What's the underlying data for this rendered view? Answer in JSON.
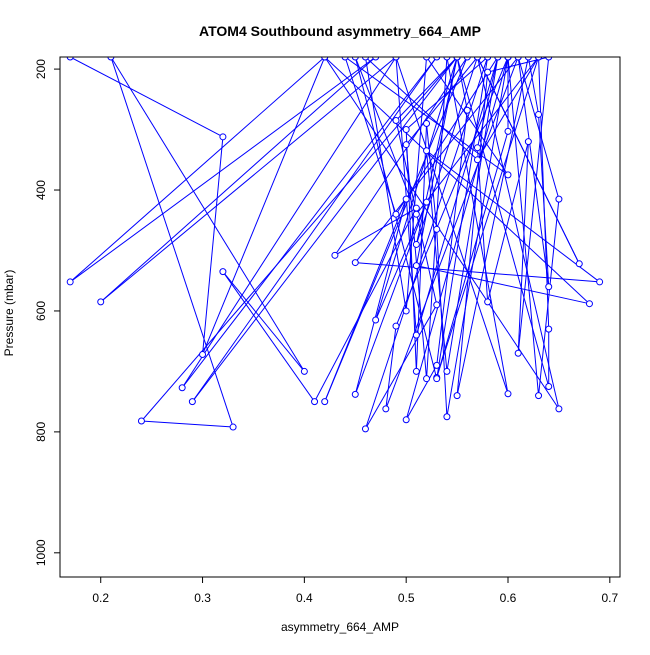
{
  "chart_data": {
    "type": "line",
    "title": "ATOM4 Southbound asymmetry_664_AMP",
    "xlabel": "asymmetry_664_AMP",
    "ylabel": "Pressure (mbar)",
    "xlim": [
      0.16,
      0.71
    ],
    "ylim": [
      1040,
      180
    ],
    "y_reversed": true,
    "x_ticks": [
      0.2,
      0.3,
      0.4,
      0.5,
      0.6,
      0.7
    ],
    "x_tick_labels": [
      "0.2",
      "0.3",
      "0.4",
      "0.5",
      "0.6",
      "0.7"
    ],
    "y_ticks": [
      200,
      400,
      600,
      800,
      1000
    ],
    "y_tick_labels": [
      "200",
      "400",
      "600",
      "800",
      "1000"
    ],
    "grid": false,
    "series_color": "#0000ff",
    "points": [
      [
        0.17,
        180
      ],
      [
        0.32,
        312
      ],
      [
        0.3,
        672
      ],
      [
        0.42,
        180
      ],
      [
        0.17,
        552
      ],
      [
        0.47,
        180
      ],
      [
        0.2,
        585
      ],
      [
        0.49,
        180
      ],
      [
        0.28,
        727
      ],
      [
        0.53,
        180
      ],
      [
        0.29,
        750
      ],
      [
        0.55,
        180
      ],
      [
        0.24,
        782
      ],
      [
        0.33,
        792
      ],
      [
        0.21,
        180
      ],
      [
        0.4,
        700
      ],
      [
        0.32,
        535
      ],
      [
        0.41,
        750
      ],
      [
        0.51,
        430
      ],
      [
        0.43,
        508
      ],
      [
        0.56,
        180
      ],
      [
        0.42,
        750
      ],
      [
        0.5,
        415
      ],
      [
        0.45,
        738
      ],
      [
        0.52,
        420
      ],
      [
        0.47,
        615
      ],
      [
        0.55,
        180
      ],
      [
        0.49,
        285
      ],
      [
        0.53,
        590
      ],
      [
        0.46,
        795
      ],
      [
        0.58,
        180
      ],
      [
        0.5,
        300
      ],
      [
        0.51,
        700
      ],
      [
        0.52,
        290
      ],
      [
        0.53,
        465
      ],
      [
        0.54,
        775
      ],
      [
        0.6,
        180
      ],
      [
        0.49,
        625
      ],
      [
        0.48,
        762
      ],
      [
        0.61,
        180
      ],
      [
        0.45,
        520
      ],
      [
        0.69,
        552
      ],
      [
        0.52,
        335
      ],
      [
        0.54,
        700
      ],
      [
        0.59,
        180
      ],
      [
        0.57,
        330
      ],
      [
        0.58,
        585
      ],
      [
        0.62,
        320
      ],
      [
        0.61,
        670
      ],
      [
        0.64,
        180
      ],
      [
        0.58,
        205
      ],
      [
        0.55,
        740
      ],
      [
        0.62,
        180
      ],
      [
        0.63,
        275
      ],
      [
        0.64,
        560
      ],
      [
        0.61,
        180
      ],
      [
        0.65,
        415
      ],
      [
        0.63,
        740
      ],
      [
        0.6,
        180
      ],
      [
        0.6,
        303
      ],
      [
        0.53,
        710
      ],
      [
        0.63,
        180
      ],
      [
        0.64,
        630
      ],
      [
        0.64,
        725
      ],
      [
        0.55,
        180
      ],
      [
        0.56,
        268
      ],
      [
        0.53,
        690
      ],
      [
        0.5,
        780
      ],
      [
        0.6,
        180
      ],
      [
        0.57,
        180
      ],
      [
        0.67,
        522
      ],
      [
        0.57,
        180
      ],
      [
        0.51,
        490
      ],
      [
        0.55,
        180
      ],
      [
        0.51,
        525
      ],
      [
        0.68,
        588
      ],
      [
        0.42,
        180
      ],
      [
        0.65,
        762
      ],
      [
        0.57,
        180
      ],
      [
        0.5,
        325
      ],
      [
        0.52,
        712
      ],
      [
        0.54,
        180
      ],
      [
        0.6,
        737
      ],
      [
        0.49,
        180
      ],
      [
        0.51,
        640
      ],
      [
        0.59,
        180
      ],
      [
        0.49,
        440
      ],
      [
        0.44,
        180
      ],
      [
        0.6,
        375
      ],
      [
        0.52,
        180
      ],
      [
        0.5,
        600
      ],
      [
        0.46,
        180
      ],
      [
        0.57,
        350
      ],
      [
        0.63,
        180
      ],
      [
        0.51,
        440
      ],
      [
        0.45,
        180
      ],
      [
        0.53,
        712
      ],
      [
        0.58,
        180
      ]
    ]
  }
}
